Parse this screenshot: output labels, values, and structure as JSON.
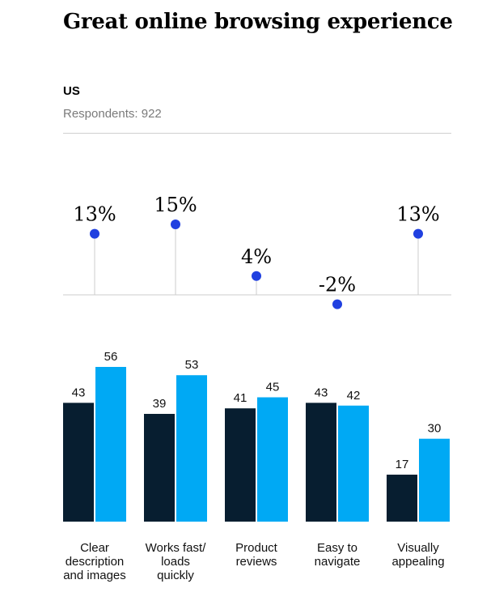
{
  "header": {
    "title": "Great online browsing experience",
    "region": "US",
    "respondents": "Respondents: 922"
  },
  "colors": {
    "series_dark": "#071e30",
    "series_light": "#00a9f4",
    "dot": "#2040e0",
    "stem": "#cccccc",
    "baseline": "#cccccc"
  },
  "chart_data": {
    "type": "bar",
    "categories": [
      [
        "Clear",
        "description",
        "and images"
      ],
      [
        "Works fast/",
        "loads",
        "quickly"
      ],
      [
        "Product",
        "reviews"
      ],
      [
        "Easy to",
        "navigate"
      ],
      [
        "Visually",
        "appealing"
      ]
    ],
    "series": [
      {
        "values": [
          43,
          39,
          41,
          43,
          17
        ]
      },
      {
        "values": [
          56,
          53,
          45,
          42,
          30
        ]
      }
    ],
    "bar_labels": [
      [
        "43",
        "39",
        "41",
        "43",
        "17"
      ],
      [
        "56",
        "53",
        "45",
        "42",
        "30"
      ]
    ],
    "differences": {
      "values": [
        13,
        15,
        4,
        -2,
        13
      ],
      "labels": [
        "13%",
        "15%",
        "4%",
        "-2%",
        "13%"
      ]
    },
    "ylim": [
      0,
      60
    ],
    "grid": false,
    "legend": "none"
  }
}
